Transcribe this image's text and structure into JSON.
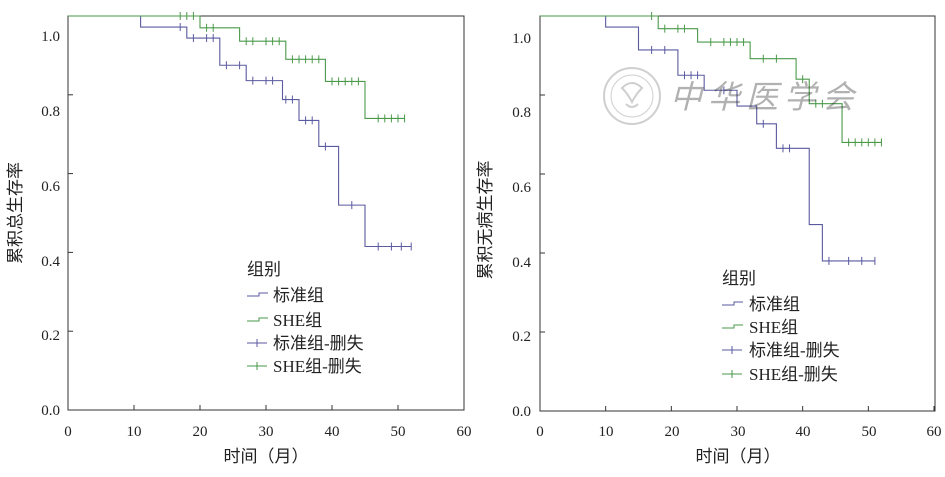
{
  "chart_data": [
    {
      "type": "line",
      "subtype": "kaplan-meier",
      "ylabel": "累积总生存率",
      "xlabel": "时间（月）",
      "xlim": [
        0,
        60
      ],
      "ylim": [
        0.0,
        1.0
      ],
      "xticks": [
        "0",
        "10",
        "20",
        "30",
        "40",
        "50",
        "60"
      ],
      "yticks": [
        "0.0",
        "0.2",
        "0.4",
        "0.6",
        "0.8",
        "1.0"
      ],
      "legend_title": "组别",
      "legend_position": "bottom-center",
      "legend": [
        "标准组",
        "SHE组",
        "标准组-删失",
        "SHE组-删失"
      ],
      "series": [
        {
          "name": "标准组",
          "color": "#5a5aa0",
          "steps": [
            [
              0,
              1.0
            ],
            [
              11,
              0.972
            ],
            [
              18,
              0.944
            ],
            [
              23,
              0.875
            ],
            [
              27,
              0.836
            ],
            [
              32.5,
              0.788
            ],
            [
              35,
              0.735
            ],
            [
              38,
              0.669
            ],
            [
              41,
              0.52
            ],
            [
              45,
              0.415
            ],
            [
              52,
              0.415
            ]
          ],
          "censored": [
            [
              17,
              0.972
            ],
            [
              19,
              0.944
            ],
            [
              21,
              0.944
            ],
            [
              22,
              0.944
            ],
            [
              24,
              0.875
            ],
            [
              26,
              0.875
            ],
            [
              28,
              0.836
            ],
            [
              30,
              0.836
            ],
            [
              31,
              0.836
            ],
            [
              33,
              0.788
            ],
            [
              34,
              0.788
            ],
            [
              36,
              0.735
            ],
            [
              37,
              0.735
            ],
            [
              39,
              0.669
            ],
            [
              43,
              0.52
            ],
            [
              47,
              0.415
            ],
            [
              49,
              0.415
            ],
            [
              50.5,
              0.415
            ],
            [
              52,
              0.415
            ]
          ]
        },
        {
          "name": "SHE组",
          "color": "#4a9a4a",
          "steps": [
            [
              0,
              1.0
            ],
            [
              20,
              0.97
            ],
            [
              26,
              0.936
            ],
            [
              33,
              0.89
            ],
            [
              39,
              0.834
            ],
            [
              45,
              0.74
            ],
            [
              51,
              0.74
            ]
          ],
          "censored": [
            [
              17,
              1.0
            ],
            [
              18,
              1.0
            ],
            [
              19,
              1.0
            ],
            [
              21,
              0.97
            ],
            [
              22,
              0.97
            ],
            [
              27,
              0.936
            ],
            [
              28,
              0.936
            ],
            [
              30,
              0.936
            ],
            [
              31,
              0.936
            ],
            [
              32,
              0.936
            ],
            [
              34,
              0.89
            ],
            [
              35,
              0.89
            ],
            [
              36,
              0.89
            ],
            [
              37,
              0.89
            ],
            [
              38,
              0.89
            ],
            [
              40,
              0.834
            ],
            [
              41,
              0.834
            ],
            [
              42,
              0.834
            ],
            [
              43,
              0.834
            ],
            [
              44,
              0.834
            ],
            [
              47,
              0.74
            ],
            [
              48,
              0.74
            ],
            [
              49,
              0.74
            ],
            [
              50,
              0.74
            ],
            [
              51,
              0.74
            ]
          ]
        }
      ]
    },
    {
      "type": "line",
      "subtype": "kaplan-meier",
      "ylabel": "累积无病生存率",
      "xlabel": "时间（月）",
      "xlim": [
        0,
        60
      ],
      "ylim": [
        0.0,
        1.0
      ],
      "xticks": [
        "0",
        "10",
        "20",
        "30",
        "40",
        "50",
        "60"
      ],
      "yticks": [
        "0.0",
        "0.2",
        "0.4",
        "0.6",
        "0.8",
        "1.0"
      ],
      "legend_title": "组别",
      "legend_position": "bottom-right",
      "legend": [
        "标准组",
        "SHE组",
        "标准组-删失",
        "SHE组-删失"
      ],
      "series": [
        {
          "name": "标准组",
          "color": "#5a5aa0",
          "steps": [
            [
              0,
              1.0
            ],
            [
              10,
              0.972
            ],
            [
              15,
              0.914
            ],
            [
              21,
              0.85
            ],
            [
              25,
              0.812
            ],
            [
              30,
              0.772
            ],
            [
              33,
              0.727
            ],
            [
              36,
              0.665
            ],
            [
              41,
              0.472
            ],
            [
              43,
              0.38
            ],
            [
              51,
              0.38
            ]
          ],
          "censored": [
            [
              17,
              0.914
            ],
            [
              19,
              0.914
            ],
            [
              22,
              0.85
            ],
            [
              23,
              0.85
            ],
            [
              24,
              0.85
            ],
            [
              28,
              0.812
            ],
            [
              34,
              0.727
            ],
            [
              37,
              0.665
            ],
            [
              38,
              0.665
            ],
            [
              44,
              0.38
            ],
            [
              47,
              0.38
            ],
            [
              49,
              0.38
            ],
            [
              51,
              0.38
            ]
          ]
        },
        {
          "name": "SHE组",
          "color": "#4a9a4a",
          "steps": [
            [
              0,
              1.0
            ],
            [
              18,
              0.968
            ],
            [
              24,
              0.934
            ],
            [
              32,
              0.892
            ],
            [
              39,
              0.84
            ],
            [
              41,
              0.778
            ],
            [
              46,
              0.68
            ],
            [
              52,
              0.68
            ]
          ],
          "censored": [
            [
              17,
              1.0
            ],
            [
              19,
              0.968
            ],
            [
              21,
              0.968
            ],
            [
              22,
              0.968
            ],
            [
              26,
              0.934
            ],
            [
              28,
              0.934
            ],
            [
              29,
              0.934
            ],
            [
              30,
              0.934
            ],
            [
              31,
              0.934
            ],
            [
              34,
              0.892
            ],
            [
              36,
              0.892
            ],
            [
              40,
              0.84
            ],
            [
              42,
              0.778
            ],
            [
              43,
              0.778
            ],
            [
              47,
              0.68
            ],
            [
              48,
              0.68
            ],
            [
              49,
              0.68
            ],
            [
              50,
              0.68
            ],
            [
              51,
              0.68
            ],
            [
              52,
              0.68
            ]
          ]
        }
      ]
    }
  ],
  "watermark": {
    "text": "中华医学会"
  }
}
